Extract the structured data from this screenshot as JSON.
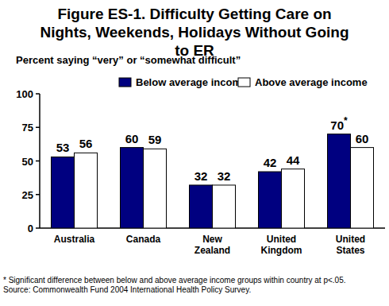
{
  "chart_data": {
    "type": "bar",
    "title": "Figure ES-1. Difficulty Getting Care on Nights, Weekends, Holidays Without Going to ER",
    "subtitle": "Percent saying “very” or “somewhat difficult”",
    "categories": [
      "Australia",
      "Canada",
      "New Zealand",
      "United Kingdom",
      "United States"
    ],
    "series": [
      {
        "name": "Below average income",
        "color": "#000080",
        "values": [
          53,
          60,
          32,
          42,
          70
        ],
        "value_labels": [
          "53",
          "60",
          "32",
          "42",
          "70*"
        ]
      },
      {
        "name": "Above average income",
        "color": "#ffffff",
        "values": [
          56,
          59,
          32,
          44,
          60
        ]
      }
    ],
    "ylim": [
      0,
      100
    ],
    "yticks": [
      0,
      25,
      50,
      75,
      100
    ],
    "grid": false,
    "legend": "top",
    "data_labels": true,
    "footnotes": [
      "* Significant difference between below and above average income groups within country at p<.05.",
      "Source: Commonwealth Fund 2004 International Health Policy Survey."
    ]
  }
}
